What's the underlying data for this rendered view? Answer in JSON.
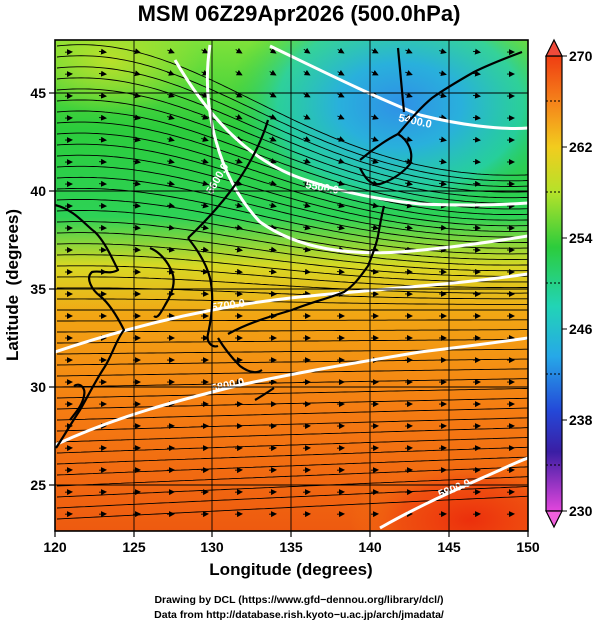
{
  "title": "MSM 06Z29Apr2026 (500.0hPa)",
  "map": {
    "lon_range": [
      120,
      150
    ],
    "lat_range": [
      22.5,
      47.6
    ],
    "xlabel": "Longitude (degrees)",
    "ylabel": "Latitude  (degrees)",
    "x_ticks": [
      "120",
      "125",
      "130",
      "135",
      "140",
      "145",
      "150"
    ],
    "y_ticks": [
      "25",
      "30",
      "35",
      "40",
      "45"
    ],
    "grid": true
  },
  "colorbar": {
    "min": 230,
    "max": 270,
    "labels": [
      "270",
      "262",
      "254",
      "246",
      "238",
      "230"
    ]
  },
  "contours": [
    {
      "label": "5400.0"
    },
    {
      "label": "5500.0"
    },
    {
      "label": "5600.0"
    },
    {
      "label": "5700.0"
    },
    {
      "label": "5800.0"
    },
    {
      "label": "5900.0"
    }
  ],
  "credits": {
    "line1": "Drawing by DCL (https://www.gfd−dennou.org/library/dcl/)",
    "line2": "Data from http://database.rish.kyoto−u.ac.jp/arch/jmadata/"
  },
  "colors": {
    "warm": "#f25a10",
    "orange": "#fa9a14",
    "yellow": "#e8dc1e",
    "green": "#2ccc3c",
    "cyan": "#22c4d0",
    "blue": "#2b6ee6",
    "magenta": "#d23cd2"
  }
}
